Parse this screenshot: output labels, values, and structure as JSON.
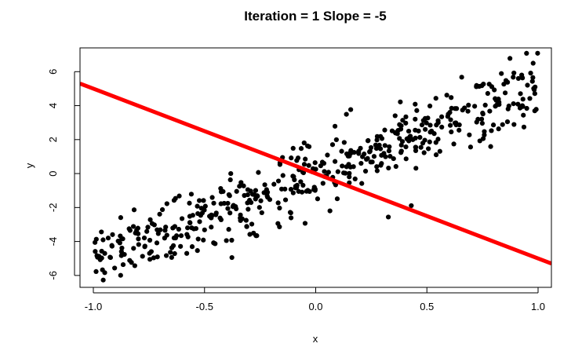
{
  "chart_data": {
    "type": "scatter",
    "title": "Iteration = 1 Slope = -5",
    "xlabel": "x",
    "ylabel": "y",
    "xlim": [
      -1.06,
      1.06
    ],
    "ylim": [
      -6.7,
      7.4
    ],
    "xticks": [
      -1.0,
      -0.5,
      0.0,
      0.5,
      1.0
    ],
    "xtick_labels": [
      "-1.0",
      "-0.5",
      "0.0",
      "0.5",
      "1.0"
    ],
    "yticks": [
      -6,
      -4,
      -2,
      0,
      2,
      4,
      6
    ],
    "ytick_labels": [
      "-6",
      "-4",
      "-2",
      "0",
      "2",
      "4",
      "6"
    ],
    "grid": false,
    "series": [
      {
        "kind": "points",
        "color": "#000000",
        "description": "approximately 500 points with y ≈ 5x + noise (sd ≈ 1), x uniform in [-1, 1]",
        "trend_slope": 5,
        "trend_intercept": 0,
        "noise_sd": 1.0,
        "count": 500
      },
      {
        "kind": "line",
        "color": "#ff0000",
        "slope": -5,
        "intercept": 0
      }
    ]
  }
}
